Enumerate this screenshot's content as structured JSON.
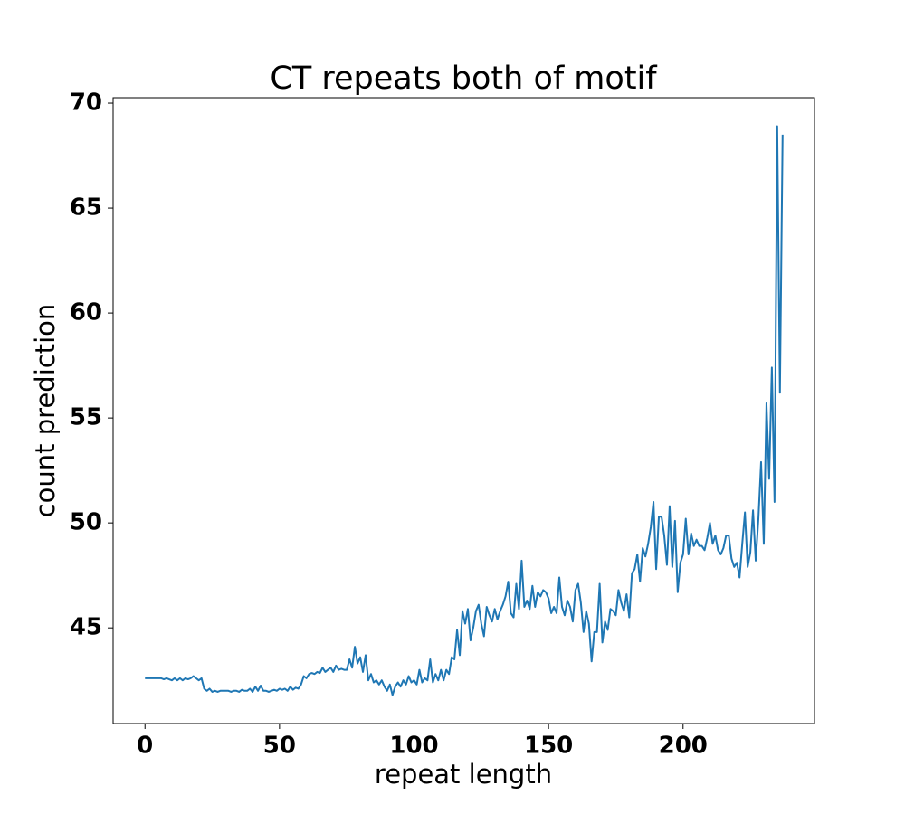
{
  "chart_data": {
    "type": "line",
    "title": "CT repeats both of motif",
    "x_label": "repeat length",
    "y_label": "count prediction",
    "color": "#1f77b4",
    "xlim": [
      -11.85,
      248.85
    ],
    "ylim": [
      40.44,
      70.26
    ],
    "xticks": [
      0,
      50,
      100,
      150,
      200
    ],
    "yticks": [
      45,
      50,
      55,
      60,
      65,
      70
    ],
    "x": [
      0,
      1,
      2,
      3,
      4,
      5,
      6,
      7,
      8,
      9,
      10,
      11,
      12,
      13,
      14,
      15,
      16,
      17,
      18,
      19,
      20,
      21,
      22,
      23,
      24,
      25,
      26,
      27,
      28,
      29,
      30,
      31,
      32,
      33,
      34,
      35,
      36,
      37,
      38,
      39,
      40,
      41,
      42,
      43,
      44,
      45,
      46,
      47,
      48,
      49,
      50,
      51,
      52,
      53,
      54,
      55,
      56,
      57,
      58,
      59,
      60,
      61,
      62,
      63,
      64,
      65,
      66,
      67,
      68,
      69,
      70,
      71,
      72,
      73,
      74,
      75,
      76,
      77,
      78,
      79,
      80,
      81,
      82,
      83,
      84,
      85,
      86,
      87,
      88,
      89,
      90,
      91,
      92,
      93,
      94,
      95,
      96,
      97,
      98,
      99,
      100,
      101,
      102,
      103,
      104,
      105,
      106,
      107,
      108,
      109,
      110,
      111,
      112,
      113,
      114,
      115,
      116,
      117,
      118,
      119,
      120,
      121,
      122,
      123,
      124,
      125,
      126,
      127,
      128,
      129,
      130,
      131,
      132,
      133,
      134,
      135,
      136,
      137,
      138,
      139,
      140,
      141,
      142,
      143,
      144,
      145,
      146,
      147,
      148,
      149,
      150,
      151,
      152,
      153,
      154,
      155,
      156,
      157,
      158,
      159,
      160,
      161,
      162,
      163,
      164,
      165,
      166,
      167,
      168,
      169,
      170,
      171,
      172,
      173,
      174,
      175,
      176,
      177,
      178,
      179,
      180,
      181,
      182,
      183,
      184,
      185,
      186,
      187,
      188,
      189,
      190,
      191,
      192,
      193,
      194,
      195,
      196,
      197,
      198,
      199,
      200,
      201,
      202,
      203,
      204,
      205,
      206,
      207,
      208,
      209,
      210,
      211,
      212,
      213,
      214,
      215,
      216,
      217,
      218,
      219,
      220,
      221,
      222,
      223,
      224,
      225,
      226,
      227,
      228,
      229,
      230,
      231,
      232,
      233,
      234,
      235,
      236,
      237
    ],
    "values": [
      42.6,
      42.6,
      42.6,
      42.6,
      42.6,
      42.6,
      42.6,
      42.55,
      42.6,
      42.55,
      42.5,
      42.6,
      42.5,
      42.6,
      42.5,
      42.6,
      42.55,
      42.6,
      42.7,
      42.6,
      42.5,
      42.6,
      42.1,
      42.0,
      42.1,
      41.95,
      42.0,
      41.95,
      42.0,
      42.0,
      42.0,
      42.0,
      41.95,
      42.0,
      42.0,
      41.95,
      42.05,
      42.0,
      42.0,
      42.1,
      41.95,
      42.2,
      42.0,
      42.25,
      42.0,
      42.0,
      41.95,
      42.0,
      42.05,
      42.0,
      42.1,
      42.05,
      42.1,
      42.0,
      42.2,
      42.05,
      42.15,
      42.1,
      42.3,
      42.7,
      42.6,
      42.8,
      42.85,
      42.8,
      42.9,
      42.85,
      43.1,
      42.9,
      43.0,
      43.1,
      42.9,
      43.2,
      43.0,
      43.05,
      43.0,
      43.0,
      43.5,
      43.1,
      44.1,
      43.3,
      43.6,
      42.9,
      43.7,
      42.5,
      42.8,
      42.4,
      42.5,
      42.3,
      42.5,
      42.2,
      42.0,
      42.3,
      41.8,
      42.2,
      42.4,
      42.2,
      42.5,
      42.3,
      42.7,
      42.4,
      42.5,
      42.3,
      43.0,
      42.4,
      42.6,
      42.5,
      43.5,
      42.4,
      42.8,
      42.5,
      43.0,
      42.5,
      43.0,
      42.8,
      43.6,
      43.5,
      44.9,
      43.7,
      45.8,
      45.2,
      45.9,
      44.4,
      45.0,
      45.8,
      46.1,
      45.2,
      44.6,
      46.0,
      45.6,
      45.3,
      45.9,
      45.4,
      45.8,
      46.1,
      46.5,
      47.2,
      45.7,
      45.5,
      47.1,
      45.9,
      48.2,
      46.0,
      46.3,
      45.9,
      47.0,
      46.0,
      46.7,
      46.5,
      46.8,
      46.7,
      46.4,
      45.7,
      46.0,
      45.7,
      47.4,
      46.0,
      45.6,
      46.3,
      46.0,
      45.3,
      46.8,
      47.1,
      46.2,
      44.8,
      45.8,
      45.2,
      43.4,
      44.8,
      44.8,
      47.1,
      44.3,
      45.3,
      44.9,
      45.9,
      45.8,
      45.6,
      46.8,
      46.2,
      45.8,
      46.6,
      45.5,
      47.6,
      47.8,
      48.5,
      47.2,
      48.8,
      48.4,
      49.0,
      49.8,
      51.0,
      47.8,
      50.3,
      50.3,
      49.4,
      48.0,
      50.8,
      47.9,
      50.1,
      46.7,
      48.1,
      48.5,
      50.2,
      48.5,
      49.5,
      48.9,
      49.2,
      48.9,
      48.9,
      48.7,
      49.3,
      50.0,
      49.0,
      49.4,
      48.7,
      48.5,
      48.8,
      49.4,
      49.4,
      48.3,
      47.9,
      48.1,
      47.4,
      49.0,
      50.5,
      47.9,
      48.6,
      50.6,
      48.2,
      50.2,
      52.9,
      49.0,
      55.7,
      52.1,
      57.4,
      51.0,
      68.9,
      56.2,
      68.5
    ]
  }
}
